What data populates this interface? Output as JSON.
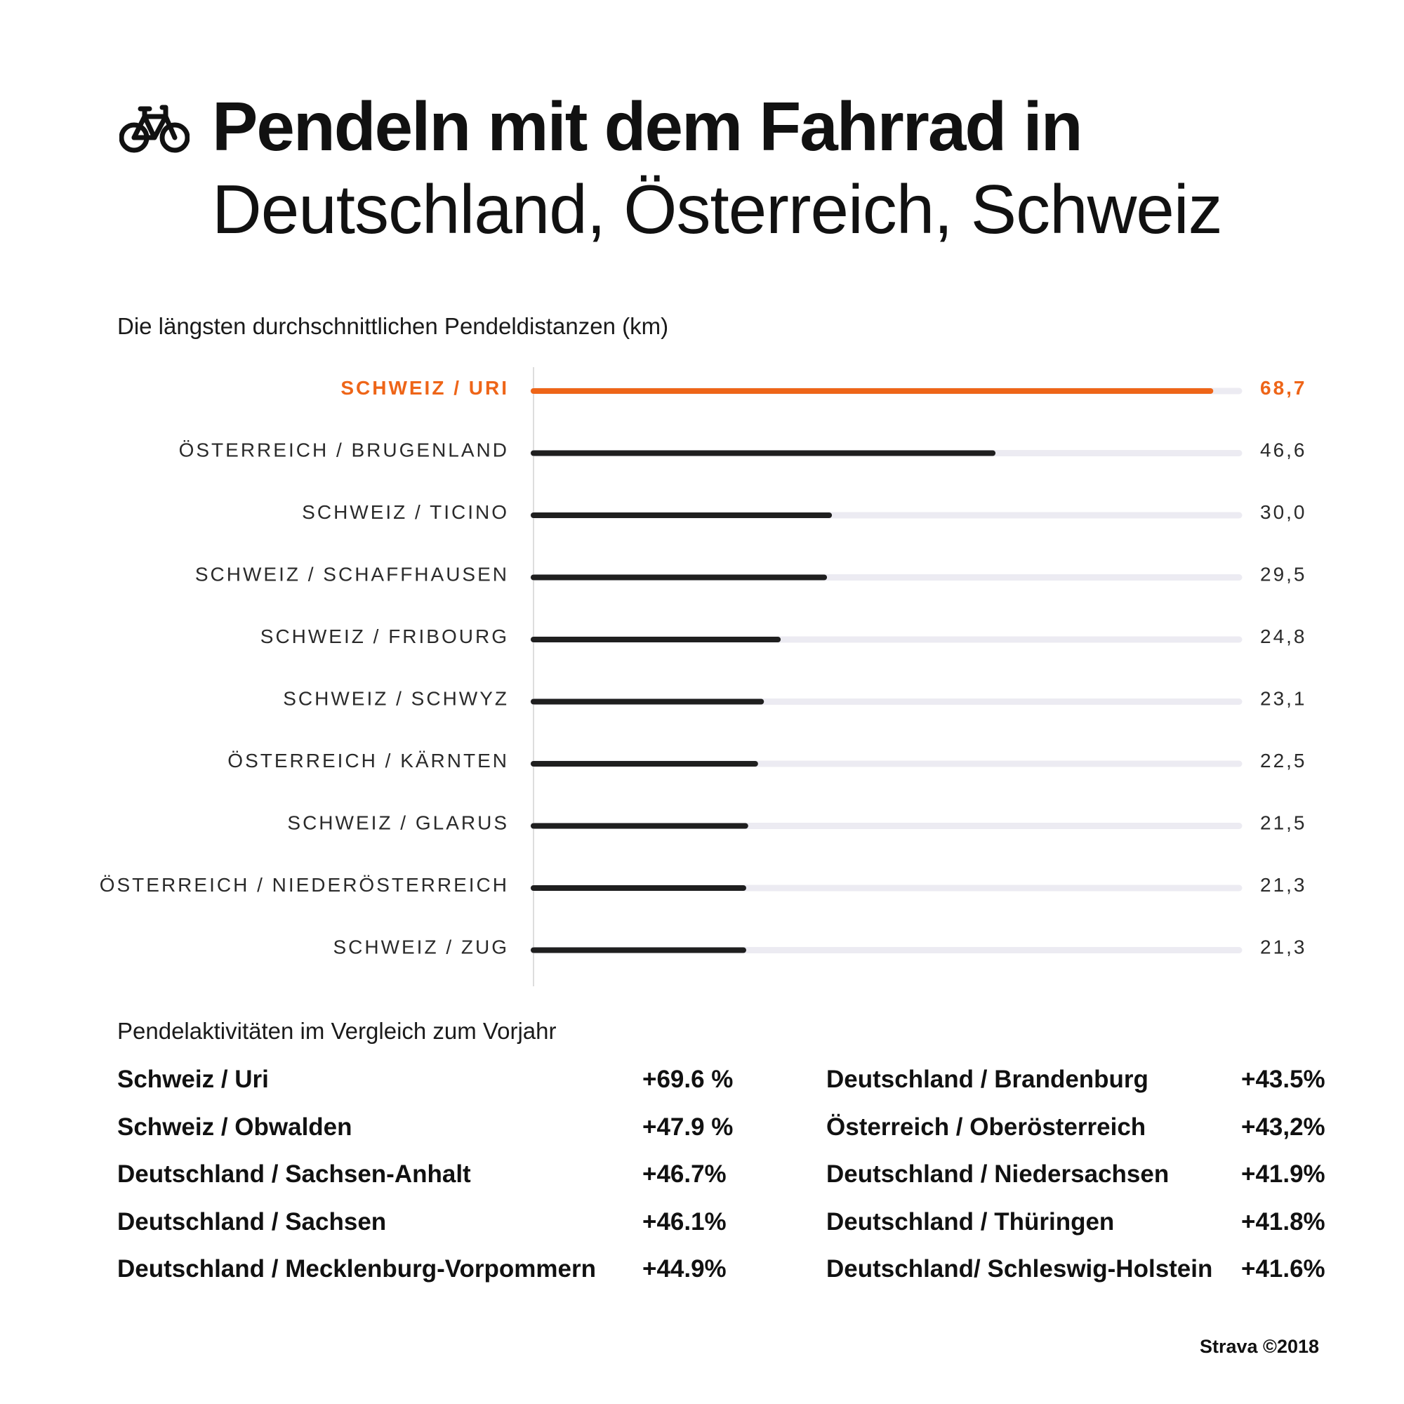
{
  "header": {
    "title_line1": "Pendeln mit dem Fahrrad in",
    "title_line2": "Deutschland, Österreich, Schweiz",
    "icon": "bicycle-icon"
  },
  "colors": {
    "accent": "#ee6518",
    "bar": "#1f1f1f",
    "track": "#ecebf2",
    "axis": "#dddddd",
    "label": "#2a2a2a"
  },
  "chart_data": {
    "type": "bar",
    "orientation": "horizontal",
    "title": "Die längsten durchschnittlichen Pendeldistanzen (km)",
    "unit": "km",
    "categories": [
      "SCHWEIZ / URI",
      "ÖSTERREICH / BRUGENLAND",
      "SCHWEIZ / TICINO",
      "SCHWEIZ / SCHAFFHAUSEN",
      "SCHWEIZ / FRIBOURG",
      "SCHWEIZ / SCHWYZ",
      "ÖSTERREICH /  KÄRNTEN",
      "SCHWEIZ /  GLARUS",
      "ÖSTERREICH / NIEDERÖSTERREICH",
      "SCHWEIZ / ZUG"
    ],
    "values": [
      68.7,
      46.6,
      30.0,
      29.5,
      24.8,
      23.1,
      22.5,
      21.5,
      21.3,
      21.3
    ],
    "value_labels": [
      "68,7",
      "46,6",
      "30,0",
      "29,5",
      "24,8",
      "23,1",
      "22,5",
      "21,5",
      "21,3",
      "21,3"
    ],
    "highlight_index": 0,
    "xlim": [
      0,
      71.6
    ]
  },
  "comparison": {
    "title": "Pendelaktivitäten im Vergleich zum Vorjahr",
    "left": [
      {
        "region": "Schweiz / Uri",
        "change": "+69.6 %"
      },
      {
        "region": "Schweiz / Obwalden",
        "change": "+47.9 %"
      },
      {
        "region": "Deutschland / Sachsen-Anhalt",
        "change": "+46.7%"
      },
      {
        "region": "Deutschland / Sachsen",
        "change": "+46.1%"
      },
      {
        "region": "Deutschland / Mecklenburg-Vorpommern",
        "change": "+44.9%"
      }
    ],
    "right": [
      {
        "region": "Deutschland / Brandenburg",
        "change": "+43.5%"
      },
      {
        "region": "Österreich / Oberösterreich",
        "change": "+43,2%"
      },
      {
        "region": "Deutschland / Niedersachsen",
        "change": "+41.9%"
      },
      {
        "region": "Deutschland / Thüringen",
        "change": "+41.8%"
      },
      {
        "region": "Deutschland/ Schleswig-Holstein",
        "change": "+41.6%"
      }
    ]
  },
  "footer": {
    "credit": "Strava ©2018"
  }
}
